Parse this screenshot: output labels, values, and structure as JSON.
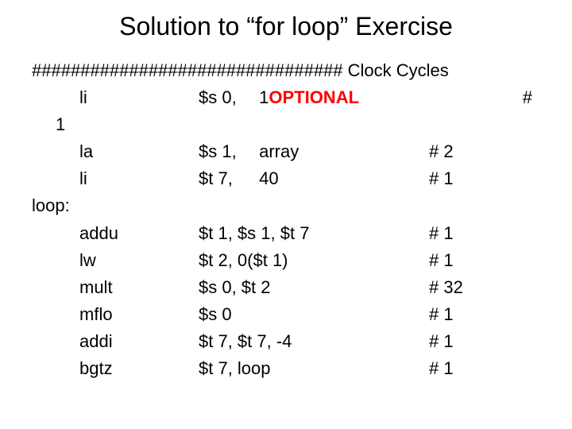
{
  "title": "Solution to “for loop” Exercise",
  "header": {
    "hashes": "################################",
    "text": " Clock Cycles"
  },
  "line1": {
    "op": "li",
    "arg1": "$s 0, ",
    "arg2_prefix": " 1",
    "optional": "OPTIONAL",
    "hash": "#"
  },
  "label1": "1",
  "line2": {
    "op": "la",
    "arg1": "$s 1, ",
    "rest": " array",
    "cyc": "# 2"
  },
  "line3": {
    "op": "li",
    "arg1": "$t 7, ",
    "rest": " 40",
    "cyc": "# 1"
  },
  "label_loop": "loop:",
  "line4": {
    "op": "addu",
    "args": "$t 1, $s 1, $t 7",
    "cyc": "# 1"
  },
  "line5": {
    "op": "lw",
    "args": "$t 2, 0($t 1)",
    "cyc": "# 1"
  },
  "line6": {
    "op": "mult",
    "args": "$s 0, $t 2",
    "cyc": "# 32"
  },
  "line7": {
    "op": "mflo",
    "args": "$s 0",
    "cyc": "# 1"
  },
  "line8": {
    "op": "addi",
    "args": "$t 7, $t 7, -4",
    "cyc": "# 1"
  },
  "line9": {
    "op": "bgtz",
    "args": "$t 7, loop",
    "cyc": "# 1"
  },
  "colors": {
    "background": "#ffffff",
    "text": "#000000",
    "optional": "#ff0000"
  },
  "fontsizes": {
    "title": 32,
    "body": 22
  }
}
